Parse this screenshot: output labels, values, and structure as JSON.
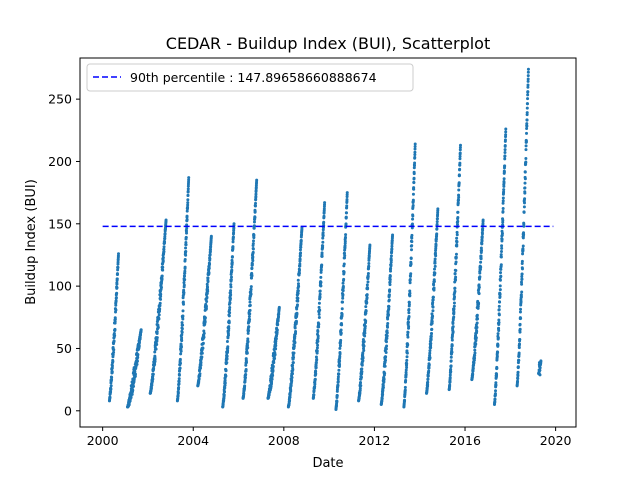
{
  "chart_data": {
    "type": "scatter",
    "title": "CEDAR - Buildup Index (BUI), Scatterplot",
    "xlabel": "Date",
    "ylabel": "Buildup Index (BUI)",
    "xlim": [
      1999.0,
      2020.9
    ],
    "ylim": [
      -13,
      283
    ],
    "x_ticks": [
      2000,
      2004,
      2008,
      2012,
      2016,
      2020
    ],
    "x_tick_labels": [
      "2000",
      "2004",
      "2008",
      "2012",
      "2016",
      "2020"
    ],
    "y_ticks": [
      0,
      50,
      100,
      150,
      200,
      250
    ],
    "y_tick_labels": [
      "0",
      "50",
      "100",
      "150",
      "200",
      "250"
    ],
    "grid": false,
    "legend": {
      "placement": "top-left",
      "entries": [
        "90th percentile : 147.89658660888674"
      ]
    },
    "reference_line": {
      "name": "90th percentile : 147.89658660888674",
      "y": 147.89658660888674,
      "x_range": [
        2000.0,
        2019.9
      ],
      "style": "dashed",
      "color": "#0000ff"
    },
    "series": [
      {
        "marker_color": "#1f77b4",
        "seasons": [
          {
            "start": 2000.3,
            "end": 2000.7,
            "start_value": 8,
            "peak": 126
          },
          {
            "start": 2001.1,
            "end": 2001.7,
            "start_value": 3,
            "peak": 65
          },
          {
            "start": 2002.1,
            "end": 2002.8,
            "start_value": 14,
            "peak": 153
          },
          {
            "start": 2003.3,
            "end": 2003.8,
            "start_value": 8,
            "peak": 187
          },
          {
            "start": 2004.2,
            "end": 2004.8,
            "start_value": 20,
            "peak": 140
          },
          {
            "start": 2005.3,
            "end": 2005.8,
            "start_value": 3,
            "peak": 150
          },
          {
            "start": 2006.2,
            "end": 2006.8,
            "start_value": 10,
            "peak": 185
          },
          {
            "start": 2007.3,
            "end": 2007.8,
            "start_value": 10,
            "peak": 83
          },
          {
            "start": 2008.2,
            "end": 2008.8,
            "start_value": 3,
            "peak": 147
          },
          {
            "start": 2009.3,
            "end": 2009.8,
            "start_value": 10,
            "peak": 167
          },
          {
            "start": 2010.3,
            "end": 2010.8,
            "start_value": 1,
            "peak": 175
          },
          {
            "start": 2011.3,
            "end": 2011.8,
            "start_value": 8,
            "peak": 133
          },
          {
            "start": 2012.3,
            "end": 2012.8,
            "start_value": 5,
            "peak": 141
          },
          {
            "start": 2013.3,
            "end": 2013.8,
            "start_value": 3,
            "peak": 214
          },
          {
            "start": 2014.3,
            "end": 2014.8,
            "start_value": 14,
            "peak": 162
          },
          {
            "start": 2015.3,
            "end": 2015.8,
            "start_value": 17,
            "peak": 213
          },
          {
            "start": 2016.3,
            "end": 2016.8,
            "start_value": 25,
            "peak": 153
          },
          {
            "start": 2017.3,
            "end": 2017.8,
            "start_value": 5,
            "peak": 226
          },
          {
            "start": 2018.3,
            "end": 2018.8,
            "start_value": 20,
            "peak": 274
          },
          {
            "start": 2019.25,
            "end": 2019.35,
            "start_value": 30,
            "peak": 40
          }
        ]
      }
    ]
  }
}
